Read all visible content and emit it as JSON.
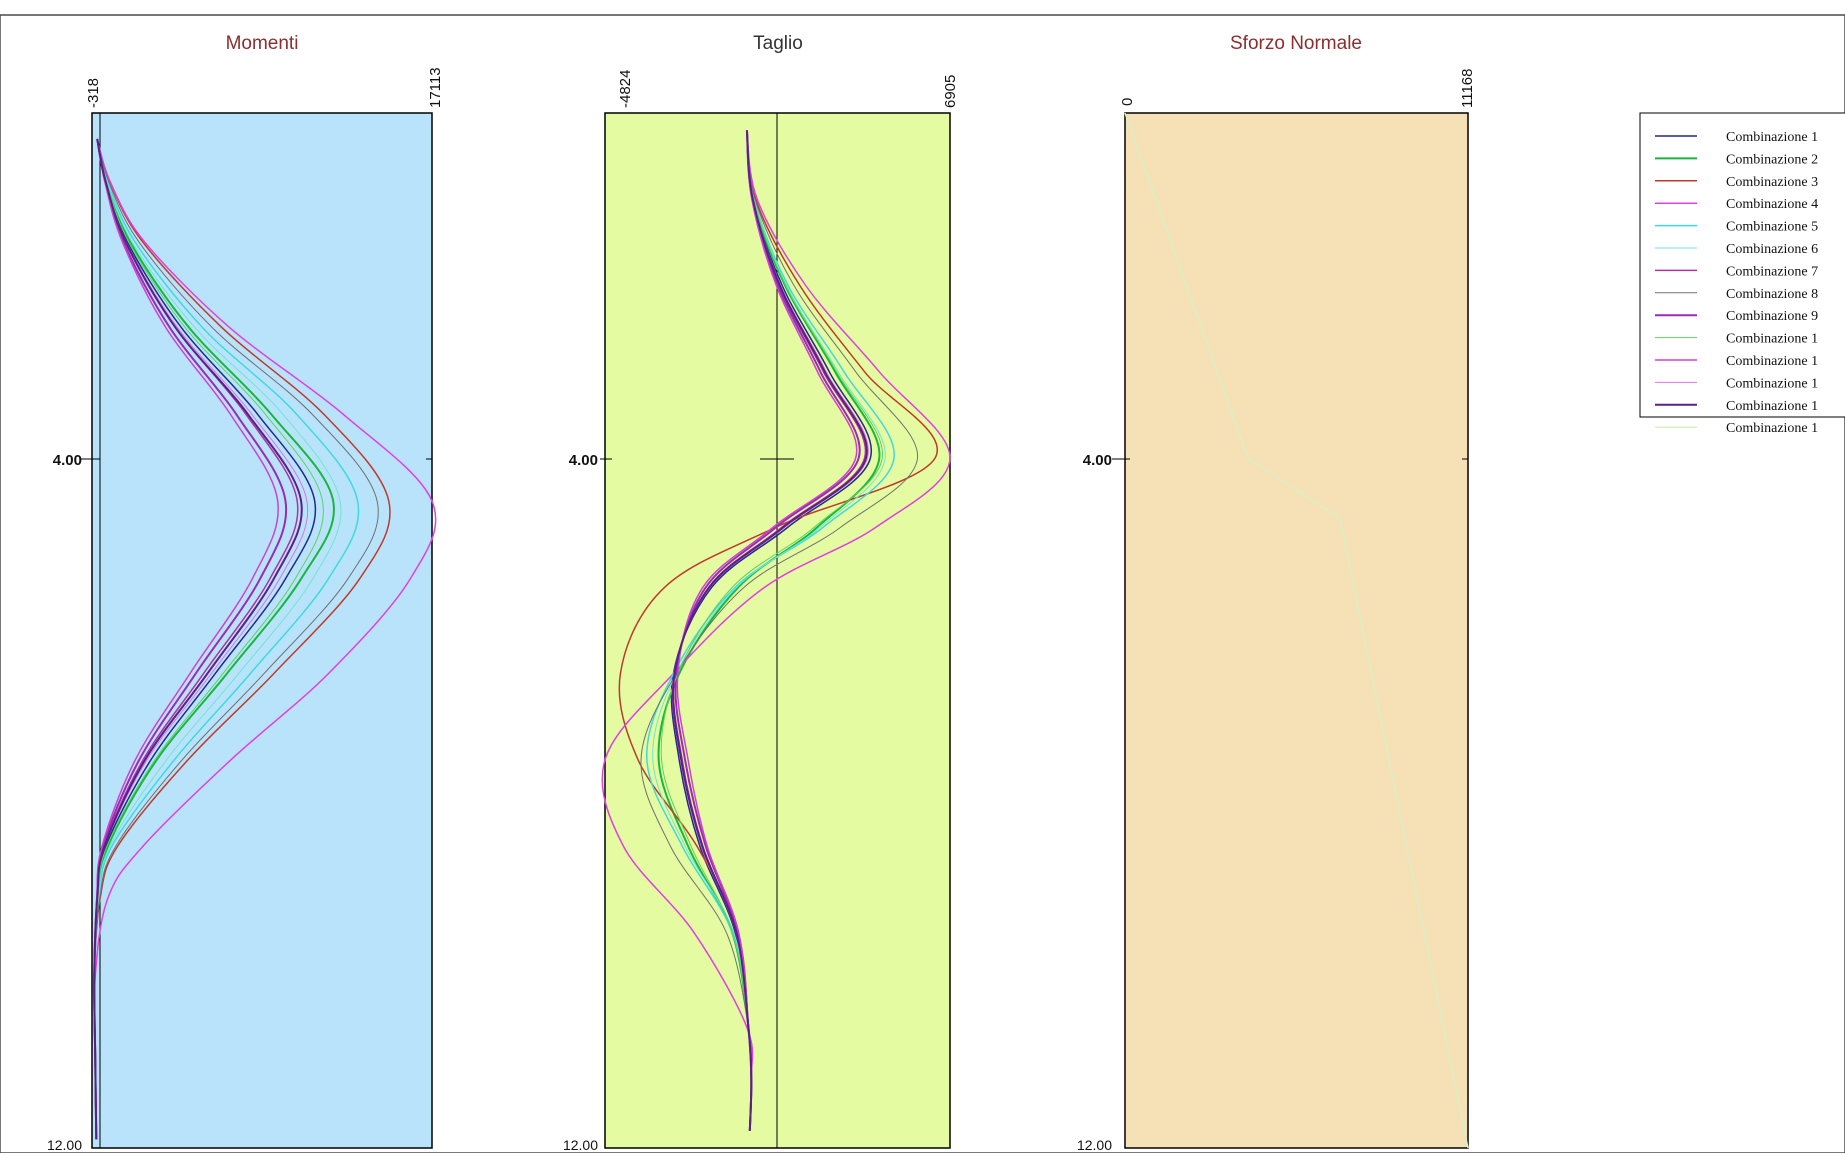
{
  "chart_data": [
    {
      "type": "line",
      "title": "Momenti",
      "xlim": [
        -318,
        17113
      ],
      "x_ticks": [
        "-318",
        "17113"
      ],
      "ylim": [
        0,
        12
      ],
      "y_ticks": [
        "4.00",
        "12.00"
      ],
      "background": "#b9e3fa",
      "series": [
        {
          "color": "#1f2a8a",
          "width": 1.5,
          "y": [
            0.3,
            0.8,
            1.5,
            2.5,
            3.5,
            4.5,
            5.4,
            6.5,
            7.5,
            8.5,
            9.1,
            10,
            11,
            11.9
          ],
          "x": [
            -50,
            400,
            1500,
            4300,
            8200,
            11100,
            9600,
            6000,
            2700,
            400,
            -20,
            -200,
            -150,
            -100
          ]
        },
        {
          "color": "#16b83b",
          "width": 2,
          "y": [
            0.3,
            0.8,
            1.5,
            2.5,
            3.5,
            4.5,
            5.4,
            6.5,
            7.5,
            8.5,
            9.1,
            10,
            11,
            11.9
          ],
          "x": [
            -50,
            450,
            1650,
            4700,
            8900,
            12050,
            10400,
            6600,
            3000,
            500,
            -10,
            -200,
            -150,
            -100
          ]
        },
        {
          "color": "#c0392b",
          "width": 1.5,
          "y": [
            0.3,
            0.8,
            1.5,
            2.5,
            3.5,
            4.5,
            5.4,
            6.5,
            7.5,
            8.5,
            9.1,
            10,
            11,
            11.9
          ],
          "x": [
            -50,
            600,
            2300,
            6400,
            11600,
            14900,
            13400,
            9000,
            4600,
            1000,
            100,
            -200,
            -150,
            -100
          ]
        },
        {
          "color": "#e040e0",
          "width": 1.5,
          "y": [
            0.3,
            0.8,
            1.5,
            2.5,
            3.5,
            4.5,
            5.4,
            6.5,
            7.5,
            8.5,
            9.1,
            10,
            11,
            11.9
          ],
          "x": [
            -50,
            620,
            2400,
            6800,
            12600,
            17113,
            16000,
            11800,
            6800,
            2300,
            500,
            -150,
            -150,
            -100
          ]
        },
        {
          "color": "#3fd9e0",
          "width": 1.5,
          "y": [
            0.3,
            0.8,
            1.5,
            2.5,
            3.5,
            4.5,
            5.4,
            6.5,
            7.5,
            8.5,
            9.1,
            10,
            11,
            11.9
          ],
          "x": [
            -50,
            500,
            1900,
            5400,
            10200,
            13300,
            11800,
            7800,
            3900,
            700,
            50,
            -200,
            -150,
            -100
          ]
        },
        {
          "color": "#6fe6d0",
          "width": 1,
          "y": [
            0.3,
            0.8,
            1.5,
            2.5,
            3.5,
            4.5,
            5.4,
            6.5,
            7.5,
            8.5,
            9.1,
            10,
            11,
            11.9
          ],
          "x": [
            -50,
            470,
            1750,
            5000,
            9500,
            12400,
            11000,
            7200,
            3500,
            600,
            20,
            -200,
            -150,
            -100
          ]
        },
        {
          "color": "#b0329e",
          "width": 1.5,
          "y": [
            0.3,
            0.8,
            1.5,
            2.5,
            3.5,
            4.5,
            5.4,
            6.5,
            7.5,
            8.5,
            9.1,
            10,
            11,
            11.9
          ],
          "x": [
            -50,
            380,
            1400,
            4000,
            7600,
            10200,
            8800,
            5400,
            2300,
            300,
            -50,
            -200,
            -150,
            -100
          ]
        },
        {
          "color": "#707070",
          "width": 1,
          "y": [
            0.3,
            0.8,
            1.5,
            2.5,
            3.5,
            4.5,
            5.4,
            6.5,
            7.5,
            8.5,
            9.1,
            10,
            11,
            11.9
          ],
          "x": [
            -50,
            550,
            2100,
            5900,
            11000,
            14300,
            12800,
            8500,
            4300,
            900,
            80,
            -200,
            -150,
            -100
          ]
        },
        {
          "color": "#9a2bb5",
          "width": 2,
          "y": [
            0.3,
            0.8,
            1.5,
            2.5,
            3.5,
            4.5,
            5.4,
            6.5,
            7.5,
            8.5,
            9.1,
            10,
            11,
            11.9
          ],
          "x": [
            -50,
            360,
            1300,
            3700,
            7100,
            9600,
            8300,
            5000,
            2100,
            250,
            -60,
            -200,
            -150,
            -100
          ]
        },
        {
          "color": "#5fd15f",
          "width": 1,
          "y": [
            0.3,
            0.8,
            1.5,
            2.5,
            3.5,
            4.5,
            5.4,
            6.5,
            7.5,
            8.5,
            9.1,
            10,
            11,
            11.9
          ],
          "x": [
            -50,
            430,
            1580,
            4500,
            8600,
            11500,
            10100,
            6400,
            2900,
            450,
            -15,
            -200,
            -150,
            -100
          ]
        },
        {
          "color": "#d040d0",
          "width": 1.5,
          "y": [
            0.3,
            0.8,
            1.5,
            2.5,
            3.5,
            4.5,
            5.4,
            6.5,
            7.5,
            8.5,
            9.1,
            10,
            11,
            11.9
          ],
          "x": [
            -50,
            350,
            1250,
            3500,
            6800,
            9200,
            7900,
            4700,
            1900,
            200,
            -70,
            -200,
            -150,
            -100
          ]
        },
        {
          "color": "#e070e8",
          "width": 1,
          "y": [
            0.3,
            0.8,
            1.5,
            2.5,
            3.5,
            4.5,
            5.4,
            6.5,
            7.5,
            8.5,
            9.1,
            10,
            11,
            11.9
          ],
          "x": [
            -50,
            400,
            1450,
            4100,
            7900,
            10700,
            9300,
            5800,
            2500,
            350,
            -40,
            -200,
            -150,
            -100
          ]
        },
        {
          "color": "#5b1f8a",
          "width": 2,
          "y": [
            0.3,
            0.8,
            1.5,
            2.5,
            3.5,
            4.5,
            5.4,
            6.5,
            7.5,
            8.5,
            9.1,
            10,
            11,
            11.9
          ],
          "x": [
            -50,
            390,
            1420,
            4000,
            7700,
            10400,
            9000,
            5600,
            2400,
            330,
            -45,
            -200,
            -150,
            -100
          ]
        }
      ]
    },
    {
      "type": "line",
      "title": "Taglio",
      "xlim": [
        -4824,
        6905
      ],
      "x_ticks": [
        "-4824",
        "6905"
      ],
      "ylim": [
        0,
        12
      ],
      "y_ticks": [
        "4.00",
        "12.00"
      ],
      "background": "#e4fba2",
      "series": [
        {
          "color": "#1f2a8a",
          "width": 1.5,
          "y": [
            0.2,
            1,
            2,
            3,
            4,
            4.8,
            5.5,
            6.5,
            7.5,
            8.5,
            9.5,
            10.6,
            11.2,
            11.8
          ],
          "x": [
            0,
            200,
            1200,
            2800,
            4200,
            1400,
            -1200,
            -2500,
            -2300,
            -1600,
            -400,
            50,
            150,
            100
          ]
        },
        {
          "color": "#16b83b",
          "width": 2,
          "y": [
            0.2,
            1,
            2,
            3,
            4,
            4.8,
            5.5,
            6.5,
            7.5,
            8.5,
            9.5,
            10.6,
            11.2,
            11.8
          ],
          "x": [
            0,
            220,
            1300,
            3000,
            4500,
            2400,
            -300,
            -2300,
            -3000,
            -2000,
            -500,
            50,
            150,
            100
          ]
        },
        {
          "color": "#c0392b",
          "width": 1.5,
          "y": [
            0.2,
            1,
            2,
            3,
            4,
            4.8,
            5.5,
            6.5,
            7.5,
            8.5,
            9.5,
            10.6,
            11.2,
            11.8
          ],
          "x": [
            0,
            300,
            1800,
            4000,
            6400,
            1000,
            -2800,
            -4300,
            -3700,
            -1700,
            -300,
            50,
            150,
            100
          ]
        },
        {
          "color": "#e040e0",
          "width": 1.5,
          "y": [
            0.2,
            1,
            2,
            3,
            4,
            4.8,
            5.5,
            6.5,
            7.5,
            8.5,
            9.5,
            10.6,
            11.2,
            11.8
          ],
          "x": [
            0,
            350,
            2000,
            4500,
            6905,
            4400,
            600,
            -2500,
            -4824,
            -4200,
            -1800,
            0,
            150,
            100
          ]
        },
        {
          "color": "#3fd9e0",
          "width": 1.5,
          "y": [
            0.2,
            1,
            2,
            3,
            4,
            4.8,
            5.5,
            6.5,
            7.5,
            8.5,
            9.5,
            10.6,
            11.2,
            11.8
          ],
          "x": [
            0,
            250,
            1400,
            3300,
            5000,
            2600,
            -400,
            -2500,
            -3400,
            -2200,
            -500,
            50,
            150,
            100
          ]
        },
        {
          "color": "#6fe6d0",
          "width": 1,
          "y": [
            0.2,
            1,
            2,
            3,
            4,
            4.8,
            5.5,
            6.5,
            7.5,
            8.5,
            9.5,
            10.6,
            11.2,
            11.8
          ],
          "x": [
            0,
            240,
            1350,
            3100,
            4700,
            2500,
            -350,
            -2400,
            -3200,
            -2100,
            -450,
            50,
            150,
            100
          ]
        },
        {
          "color": "#b0329e",
          "width": 1.5,
          "y": [
            0.2,
            1,
            2,
            3,
            4,
            4.8,
            5.5,
            6.5,
            7.5,
            8.5,
            9.5,
            10.6,
            11.2,
            11.8
          ],
          "x": [
            0,
            190,
            1100,
            2600,
            4000,
            1200,
            -1300,
            -2450,
            -2200,
            -1500,
            -350,
            50,
            150,
            100
          ]
        },
        {
          "color": "#707070",
          "width": 1,
          "y": [
            0.2,
            1,
            2,
            3,
            4,
            4.8,
            5.5,
            6.5,
            7.5,
            8.5,
            9.5,
            10.6,
            11.2,
            11.8
          ],
          "x": [
            0,
            280,
            1600,
            3700,
            5800,
            3200,
            -100,
            -2400,
            -3600,
            -2600,
            -700,
            50,
            150,
            100
          ]
        },
        {
          "color": "#9a2bb5",
          "width": 2,
          "y": [
            0.2,
            1,
            2,
            3,
            4,
            4.8,
            5.5,
            6.5,
            7.5,
            8.5,
            9.5,
            10.6,
            11.2,
            11.8
          ],
          "x": [
            0,
            180,
            1050,
            2500,
            3800,
            1000,
            -1400,
            -2400,
            -2100,
            -1400,
            -300,
            50,
            150,
            100
          ]
        },
        {
          "color": "#5fd15f",
          "width": 1,
          "y": [
            0.2,
            1,
            2,
            3,
            4,
            4.8,
            5.5,
            6.5,
            7.5,
            8.5,
            9.5,
            10.6,
            11.2,
            11.8
          ],
          "x": [
            0,
            230,
            1320,
            3050,
            4600,
            2300,
            -500,
            -2350,
            -2900,
            -1900,
            -480,
            50,
            150,
            100
          ]
        },
        {
          "color": "#d040d0",
          "width": 1.5,
          "y": [
            0.2,
            1,
            2,
            3,
            4,
            4.8,
            5.5,
            6.5,
            7.5,
            8.5,
            9.5,
            10.6,
            11.2,
            11.8
          ],
          "x": [
            0,
            170,
            1000,
            2400,
            3700,
            900,
            -1500,
            -2350,
            -2000,
            -1350,
            -280,
            50,
            150,
            100
          ]
        },
        {
          "color": "#e070e8",
          "width": 1,
          "y": [
            0.2,
            1,
            2,
            3,
            4,
            4.8,
            5.5,
            6.5,
            7.5,
            8.5,
            9.5,
            10.6,
            11.2,
            11.8
          ],
          "x": [
            0,
            210,
            1150,
            2700,
            4100,
            1300,
            -1250,
            -2480,
            -2250,
            -1550,
            -380,
            50,
            150,
            100
          ]
        },
        {
          "color": "#5b1f8a",
          "width": 2,
          "y": [
            0.2,
            1,
            2,
            3,
            4,
            4.8,
            5.5,
            6.5,
            7.5,
            8.5,
            9.5,
            10.6,
            11.2,
            11.8
          ],
          "x": [
            0,
            200,
            1120,
            2650,
            4050,
            1250,
            -1280,
            -2460,
            -2230,
            -1520,
            -360,
            50,
            150,
            100
          ]
        }
      ]
    },
    {
      "type": "line",
      "title": "Sforzo Normale",
      "xlim": [
        0,
        11168
      ],
      "x_ticks": [
        "0",
        "11168"
      ],
      "ylim": [
        0,
        12
      ],
      "y_ticks": [
        "4.00",
        "12.00"
      ],
      "background": "#f6e0b5",
      "series": [
        {
          "color": "#d8f0c8",
          "width": 1.5,
          "y": [
            0,
            4,
            4.7,
            12
          ],
          "x": [
            0,
            4000,
            7000,
            11168
          ]
        }
      ]
    }
  ],
  "legend": {
    "entries": [
      {
        "label": "Combinazione 1",
        "color": "#1f2a8a",
        "width": 1.5
      },
      {
        "label": "Combinazione 2",
        "color": "#16b83b",
        "width": 2
      },
      {
        "label": "Combinazione 3",
        "color": "#c0392b",
        "width": 1.5
      },
      {
        "label": "Combinazione 4",
        "color": "#e040e0",
        "width": 1.5
      },
      {
        "label": "Combinazione 5",
        "color": "#3fd9e0",
        "width": 1.5
      },
      {
        "label": "Combinazione 6",
        "color": "#6fe6d0",
        "width": 1
      },
      {
        "label": "Combinazione 7",
        "color": "#b0329e",
        "width": 1.5
      },
      {
        "label": "Combinazione 8",
        "color": "#707070",
        "width": 1
      },
      {
        "label": "Combinazione 9",
        "color": "#9a2bb5",
        "width": 2
      },
      {
        "label": "Combinazione 1",
        "color": "#5fd15f",
        "width": 1
      },
      {
        "label": "Combinazione 1",
        "color": "#d040d0",
        "width": 1.5
      },
      {
        "label": "Combinazione 1",
        "color": "#e070e8",
        "width": 1
      },
      {
        "label": "Combinazione 1",
        "color": "#5b1f8a",
        "width": 2
      },
      {
        "label": "Combinazione 1",
        "color": "#d8f0c8",
        "width": 1.5
      }
    ]
  }
}
